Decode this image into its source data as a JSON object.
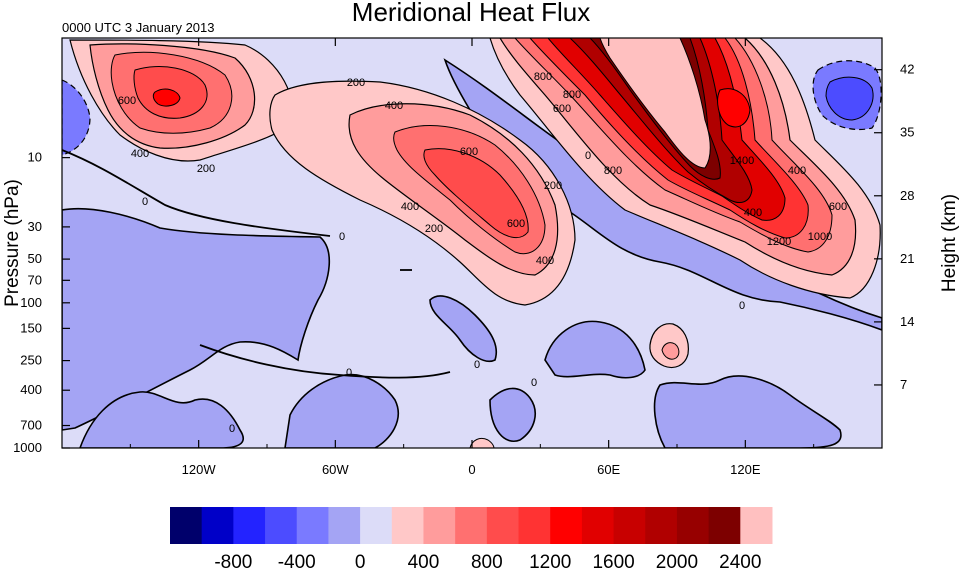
{
  "chart_data": {
    "type": "heatmap",
    "title": "Meridional Heat Flux",
    "subtitle": "0000 UTC 3 January 2013",
    "ylabel": "Pressure (hPa)",
    "y2label": "Height (km)",
    "x_ticks": [
      "120W",
      "60W",
      "0",
      "60E",
      "120E"
    ],
    "x_tick_values": [
      -120,
      -60,
      0,
      60,
      120
    ],
    "xlim": [
      -180,
      180
    ],
    "y_ticks": [
      "10",
      "30",
      "50",
      "70",
      "100",
      "150",
      "250",
      "400",
      "700",
      "1000"
    ],
    "y_tick_values": [
      10,
      30,
      50,
      70,
      100,
      150,
      250,
      400,
      700,
      1000
    ],
    "y_scale": "log",
    "y2_ticks": [
      "42",
      "35",
      "28",
      "21",
      "14",
      "7"
    ],
    "y2_tick_values": [
      42,
      35,
      28,
      21,
      14,
      7
    ],
    "colorbar": {
      "levels": [
        -1000,
        -900,
        -800,
        -600,
        -400,
        -200,
        0,
        200,
        400,
        600,
        800,
        1000,
        1200,
        1400,
        1600,
        1800,
        2000,
        2200,
        2400
      ],
      "labels": [
        "-800",
        "-400",
        "0",
        "400",
        "800",
        "1200",
        "1600",
        "2000",
        "2400"
      ],
      "label_values": [
        -800,
        -400,
        0,
        400,
        800,
        1200,
        1600,
        2000,
        2400
      ],
      "colors": [
        "#00006b",
        "#0000c8",
        "#2323ff",
        "#4c4cff",
        "#7a7aff",
        "#a4a4f4",
        "#dcdcf8",
        "#ffc8c8",
        "#ff9c9c",
        "#ff7070",
        "#ff4c4c",
        "#ff3333",
        "#ff0000",
        "#e10000",
        "#c80000",
        "#b00000",
        "#970000",
        "#7d0000",
        "#ffc0c0"
      ]
    },
    "contour_labels": [
      "0",
      "0",
      "0",
      "0",
      "0",
      "0",
      "0",
      "0",
      "200",
      "200",
      "200",
      "200",
      "400",
      "400",
      "400",
      "400",
      "400",
      "600",
      "600",
      "600",
      "600",
      "600",
      "800",
      "800",
      "800",
      "1000",
      "1200",
      "1400",
      "400"
    ],
    "features": [
      {
        "lon": -133,
        "p": 4,
        "value": 1000
      },
      {
        "lon": -10,
        "p": 13,
        "value": 900
      },
      {
        "lon": 100,
        "p": 3,
        "value": 2400
      },
      {
        "lon": 125,
        "p": 25,
        "value": 1500
      },
      {
        "lon": 85,
        "p": 200,
        "value": 400
      },
      {
        "lon": 170,
        "p": 4,
        "value": -700
      },
      {
        "lon": -175,
        "p": 4,
        "value": -400
      }
    ]
  }
}
